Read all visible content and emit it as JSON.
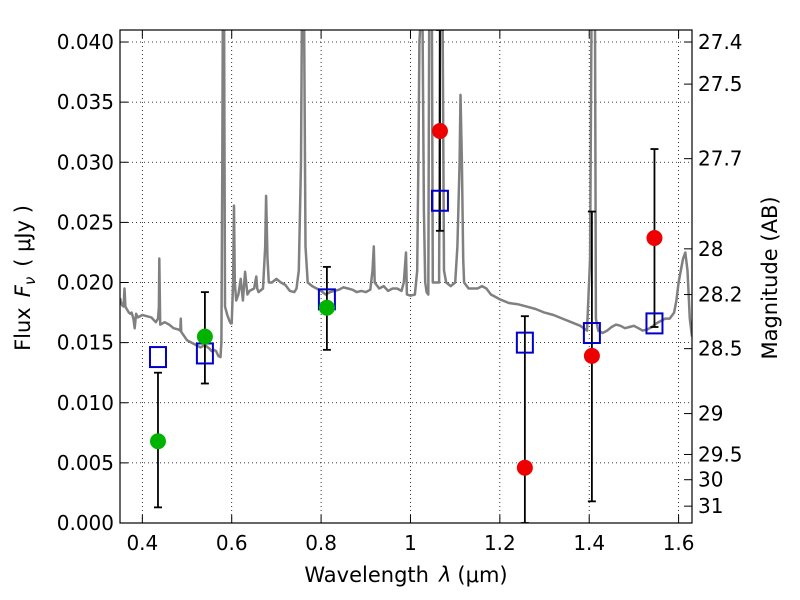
{
  "chart_data": {
    "type": "scatter",
    "xlabel_text": "Wavelength",
    "xlabel_symbol": "λ",
    "xlabel_units": "(μm)",
    "ylabel_text": "Flux",
    "ylabel_symbol": "F",
    "ylabel_subscript": "ν",
    "ylabel_units": "( μJy )",
    "y2label": "Magnitude (AB)",
    "xlim": [
      0.35,
      1.63
    ],
    "ylim": [
      0.0,
      0.041
    ],
    "grid": true,
    "x_ticks": [
      0.4,
      0.6,
      0.8,
      1.0,
      1.2,
      1.4,
      1.6
    ],
    "x_tick_labels": [
      "0.4",
      "0.6",
      "0.8",
      "1",
      "1.2",
      "1.4",
      "1.6"
    ],
    "y_ticks": [
      0.0,
      0.005,
      0.01,
      0.015,
      0.02,
      0.025,
      0.03,
      0.035,
      0.04
    ],
    "y_tick_labels": [
      "0.000",
      "0.005",
      "0.010",
      "0.015",
      "0.020",
      "0.025",
      "0.030",
      "0.035",
      "0.040"
    ],
    "y2_ticks": [
      {
        "label": "27.4",
        "flux": 0.04
      },
      {
        "label": "27.5",
        "flux": 0.0365
      },
      {
        "label": "27.7",
        "flux": 0.0303
      },
      {
        "label": "28",
        "flux": 0.0228
      },
      {
        "label": "28.2",
        "flux": 0.019
      },
      {
        "label": "28.5",
        "flux": 0.0145
      },
      {
        "label": "29",
        "flux": 0.0091
      },
      {
        "label": "29.5",
        "flux": 0.0057
      },
      {
        "label": "30",
        "flux": 0.0036
      },
      {
        "label": "31",
        "flux": 0.0014
      }
    ],
    "series": [
      {
        "name": "model-spectrum",
        "kind": "line",
        "color": "#808080",
        "points": [
          [
            0.35,
            0.0187
          ],
          [
            0.352,
            0.0184
          ],
          [
            0.355,
            0.0181
          ],
          [
            0.358,
            0.018
          ],
          [
            0.36,
            0.0195
          ],
          [
            0.362,
            0.018
          ],
          [
            0.365,
            0.0178
          ],
          [
            0.37,
            0.0175
          ],
          [
            0.373,
            0.0174
          ],
          [
            0.376,
            0.0175
          ],
          [
            0.38,
            0.017
          ],
          [
            0.383,
            0.0162
          ],
          [
            0.386,
            0.0174
          ],
          [
            0.39,
            0.0171
          ],
          [
            0.4,
            0.0173
          ],
          [
            0.41,
            0.0172
          ],
          [
            0.42,
            0.0171
          ],
          [
            0.43,
            0.0167
          ],
          [
            0.435,
            0.017
          ],
          [
            0.437,
            0.018
          ],
          [
            0.438,
            0.022
          ],
          [
            0.44,
            0.0165
          ],
          [
            0.45,
            0.0167
          ],
          [
            0.46,
            0.0165
          ],
          [
            0.47,
            0.0162
          ],
          [
            0.48,
            0.0161
          ],
          [
            0.485,
            0.016
          ],
          [
            0.486,
            0.017
          ],
          [
            0.487,
            0.0159
          ],
          [
            0.5,
            0.0152
          ],
          [
            0.51,
            0.015
          ],
          [
            0.52,
            0.0148
          ],
          [
            0.53,
            0.0146
          ],
          [
            0.54,
            0.0148
          ],
          [
            0.55,
            0.0145
          ],
          [
            0.555,
            0.0143
          ],
          [
            0.56,
            0.0144
          ],
          [
            0.565,
            0.0143
          ],
          [
            0.57,
            0.0139
          ],
          [
            0.575,
            0.0138
          ],
          [
            0.577,
            0.015
          ],
          [
            0.579,
            0.03
          ],
          [
            0.58,
            0.042
          ],
          [
            0.583,
            0.042
          ],
          [
            0.585,
            0.018
          ],
          [
            0.59,
            0.0173
          ],
          [
            0.595,
            0.0168
          ],
          [
            0.598,
            0.0166
          ],
          [
            0.6,
            0.0166
          ],
          [
            0.603,
            0.02
          ],
          [
            0.605,
            0.0264
          ],
          [
            0.607,
            0.02
          ],
          [
            0.61,
            0.0185
          ],
          [
            0.615,
            0.019
          ],
          [
            0.62,
            0.0203
          ],
          [
            0.625,
            0.0185
          ],
          [
            0.63,
            0.0209
          ],
          [
            0.635,
            0.019
          ],
          [
            0.64,
            0.0193
          ],
          [
            0.65,
            0.0195
          ],
          [
            0.655,
            0.0205
          ],
          [
            0.657,
            0.0195
          ],
          [
            0.66,
            0.0192
          ],
          [
            0.67,
            0.0195
          ],
          [
            0.675,
            0.023
          ],
          [
            0.677,
            0.0272
          ],
          [
            0.68,
            0.022
          ],
          [
            0.683,
            0.02
          ],
          [
            0.69,
            0.02
          ],
          [
            0.7,
            0.0203
          ],
          [
            0.71,
            0.02
          ],
          [
            0.72,
            0.0198
          ],
          [
            0.73,
            0.0193
          ],
          [
            0.74,
            0.0192
          ],
          [
            0.745,
            0.0195
          ],
          [
            0.75,
            0.021
          ],
          [
            0.755,
            0.03
          ],
          [
            0.757,
            0.042
          ],
          [
            0.762,
            0.042
          ],
          [
            0.765,
            0.023
          ],
          [
            0.77,
            0.02
          ],
          [
            0.78,
            0.0197
          ],
          [
            0.79,
            0.0195
          ],
          [
            0.8,
            0.0193
          ],
          [
            0.81,
            0.019
          ],
          [
            0.82,
            0.0192
          ],
          [
            0.83,
            0.0193
          ],
          [
            0.84,
            0.0194
          ],
          [
            0.85,
            0.0196
          ],
          [
            0.86,
            0.0195
          ],
          [
            0.87,
            0.0194
          ],
          [
            0.88,
            0.0192
          ],
          [
            0.89,
            0.0193
          ],
          [
            0.9,
            0.0192
          ],
          [
            0.91,
            0.0194
          ],
          [
            0.915,
            0.021
          ],
          [
            0.918,
            0.023
          ],
          [
            0.92,
            0.02
          ],
          [
            0.93,
            0.0195
          ],
          [
            0.94,
            0.0197
          ],
          [
            0.95,
            0.0193
          ],
          [
            0.96,
            0.0195
          ],
          [
            0.97,
            0.0195
          ],
          [
            0.98,
            0.0193
          ],
          [
            0.985,
            0.02
          ],
          [
            0.99,
            0.0225
          ],
          [
            0.992,
            0.019
          ],
          [
            1.0,
            0.0189
          ],
          [
            1.01,
            0.019
          ],
          [
            1.015,
            0.021
          ],
          [
            1.018,
            0.031
          ],
          [
            1.02,
            0.04
          ],
          [
            1.023,
            0.042
          ],
          [
            1.027,
            0.042
          ],
          [
            1.03,
            0.026
          ],
          [
            1.033,
            0.02
          ],
          [
            1.036,
            0.0192
          ],
          [
            1.04,
            0.019
          ],
          [
            1.042,
            0.042
          ],
          [
            1.048,
            0.042
          ],
          [
            1.05,
            0.02
          ],
          [
            1.06,
            0.02
          ],
          [
            1.064,
            0.02
          ],
          [
            1.066,
            0.042
          ],
          [
            1.072,
            0.042
          ],
          [
            1.075,
            0.021
          ],
          [
            1.08,
            0.02
          ],
          [
            1.09,
            0.0197
          ],
          [
            1.1,
            0.02
          ],
          [
            1.105,
            0.023
          ],
          [
            1.11,
            0.03
          ],
          [
            1.112,
            0.0356
          ],
          [
            1.115,
            0.03
          ],
          [
            1.118,
            0.022
          ],
          [
            1.12,
            0.02
          ],
          [
            1.13,
            0.0195
          ],
          [
            1.14,
            0.0195
          ],
          [
            1.15,
            0.0195
          ],
          [
            1.16,
            0.0197
          ],
          [
            1.17,
            0.0195
          ],
          [
            1.18,
            0.019
          ],
          [
            1.19,
            0.0188
          ],
          [
            1.2,
            0.0186
          ],
          [
            1.22,
            0.0183
          ],
          [
            1.24,
            0.0182
          ],
          [
            1.26,
            0.018
          ],
          [
            1.28,
            0.0178
          ],
          [
            1.3,
            0.0175
          ],
          [
            1.32,
            0.0173
          ],
          [
            1.34,
            0.017
          ],
          [
            1.36,
            0.0167
          ],
          [
            1.38,
            0.0164
          ],
          [
            1.395,
            0.016
          ],
          [
            1.402,
            0.022
          ],
          [
            1.405,
            0.042
          ],
          [
            1.413,
            0.042
          ],
          [
            1.415,
            0.017
          ],
          [
            1.42,
            0.016
          ],
          [
            1.43,
            0.0158
          ],
          [
            1.44,
            0.016
          ],
          [
            1.45,
            0.0163
          ],
          [
            1.46,
            0.0165
          ],
          [
            1.47,
            0.0164
          ],
          [
            1.48,
            0.0162
          ],
          [
            1.49,
            0.0163
          ],
          [
            1.5,
            0.0164
          ],
          [
            1.51,
            0.0162
          ],
          [
            1.52,
            0.016
          ],
          [
            1.53,
            0.0161
          ],
          [
            1.54,
            0.0163
          ],
          [
            1.55,
            0.0166
          ],
          [
            1.56,
            0.0168
          ],
          [
            1.57,
            0.017
          ],
          [
            1.58,
            0.017
          ],
          [
            1.59,
            0.0175
          ],
          [
            1.595,
            0.0185
          ],
          [
            1.6,
            0.02
          ],
          [
            1.605,
            0.021
          ],
          [
            1.61,
            0.022
          ],
          [
            1.615,
            0.0225
          ],
          [
            1.62,
            0.021
          ],
          [
            1.625,
            0.017
          ],
          [
            1.63,
            0.0155
          ]
        ]
      },
      {
        "name": "observed-green",
        "kind": "circle",
        "color": "#00b300",
        "points": [
          {
            "x": 0.435,
            "y": 0.0068,
            "ylo": 0.0013,
            "yhi": 0.0125
          },
          {
            "x": 0.54,
            "y": 0.0155,
            "ylo": 0.0116,
            "yhi": 0.0192
          },
          {
            "x": 0.813,
            "y": 0.0179,
            "ylo": 0.0144,
            "yhi": 0.0213
          }
        ]
      },
      {
        "name": "observed-red",
        "kind": "circle",
        "color": "#ee0000",
        "points": [
          {
            "x": 1.066,
            "y": 0.0326,
            "ylo": 0.0243,
            "yhi": 0.041
          },
          {
            "x": 1.256,
            "y": 0.0046,
            "ylo": 0.0,
            "yhi": 0.0172
          },
          {
            "x": 1.406,
            "y": 0.0139,
            "ylo": 0.0018,
            "yhi": 0.0259
          },
          {
            "x": 1.546,
            "y": 0.0237,
            "ylo": 0.0163,
            "yhi": 0.0311
          }
        ]
      },
      {
        "name": "model-synthetic",
        "kind": "square",
        "color": "#0000cc",
        "points": [
          {
            "x": 0.435,
            "y": 0.0138
          },
          {
            "x": 0.54,
            "y": 0.0141
          },
          {
            "x": 0.813,
            "y": 0.0186
          },
          {
            "x": 1.066,
            "y": 0.0268
          },
          {
            "x": 1.256,
            "y": 0.015
          },
          {
            "x": 1.406,
            "y": 0.0158
          },
          {
            "x": 1.546,
            "y": 0.0166
          }
        ]
      }
    ]
  }
}
